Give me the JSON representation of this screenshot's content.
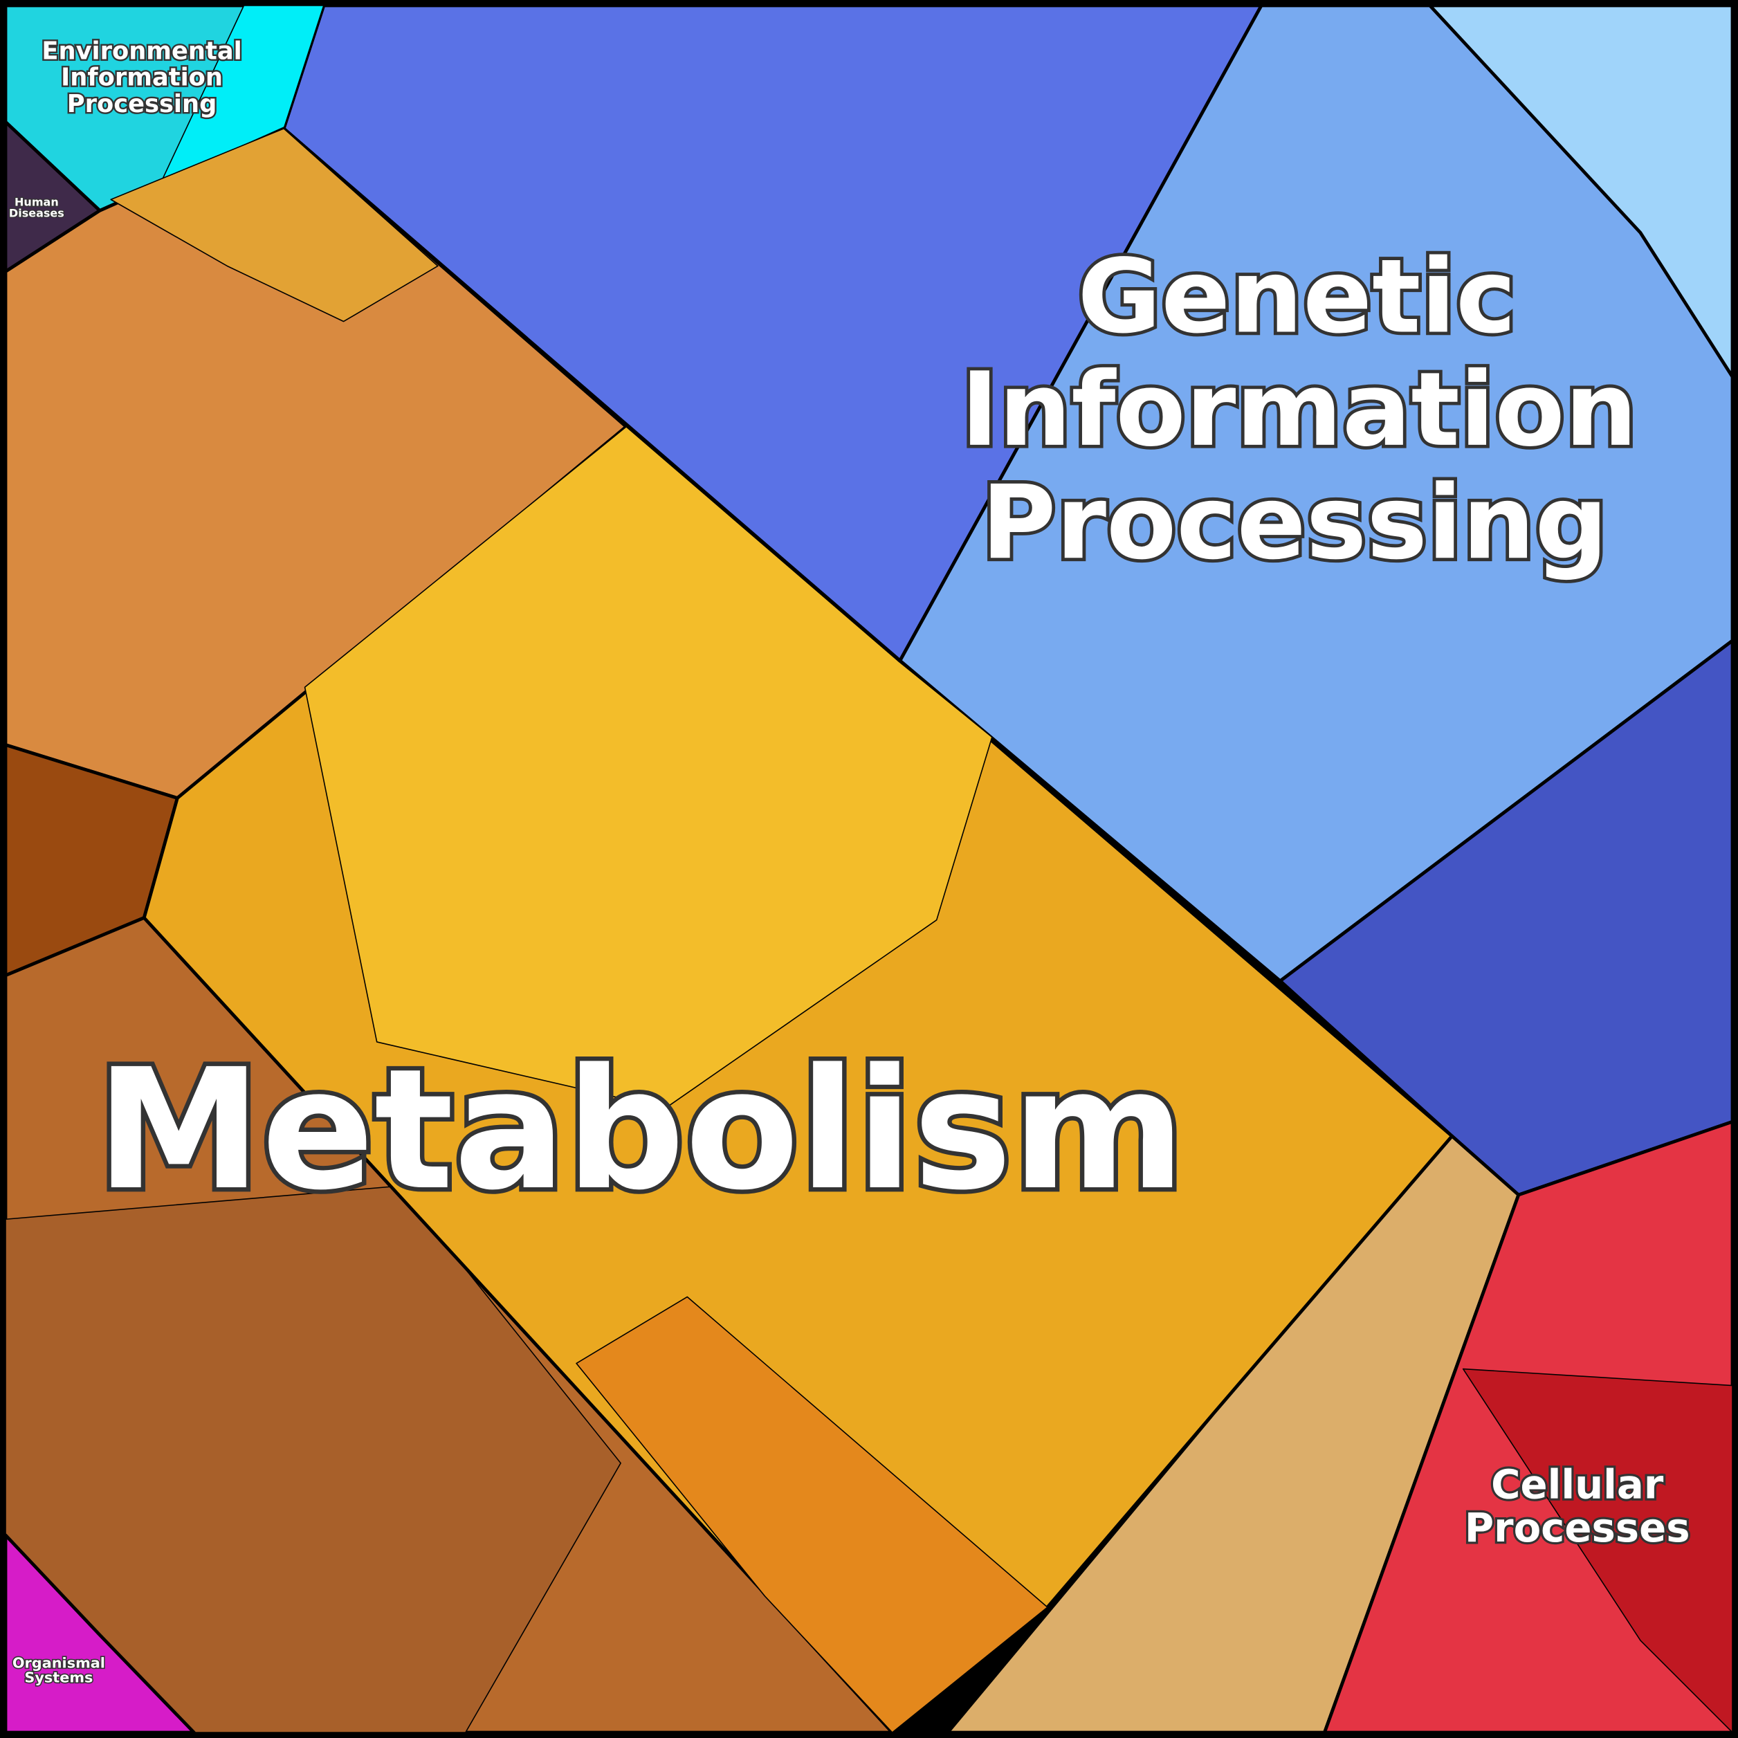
{
  "regions": [
    {
      "label_lines": [
        "Environmental",
        "Information",
        "Processing"
      ]
    },
    {
      "label_lines": [
        "Human",
        "Diseases"
      ]
    },
    {
      "label_lines": [
        "Genetic",
        "Information",
        "Processing"
      ]
    },
    {
      "label_lines": [
        "Metabolism"
      ]
    },
    {
      "label_lines": [
        "Cellular",
        "Processes"
      ]
    },
    {
      "label_lines": [
        "Organismal",
        "Systems"
      ]
    }
  ]
}
